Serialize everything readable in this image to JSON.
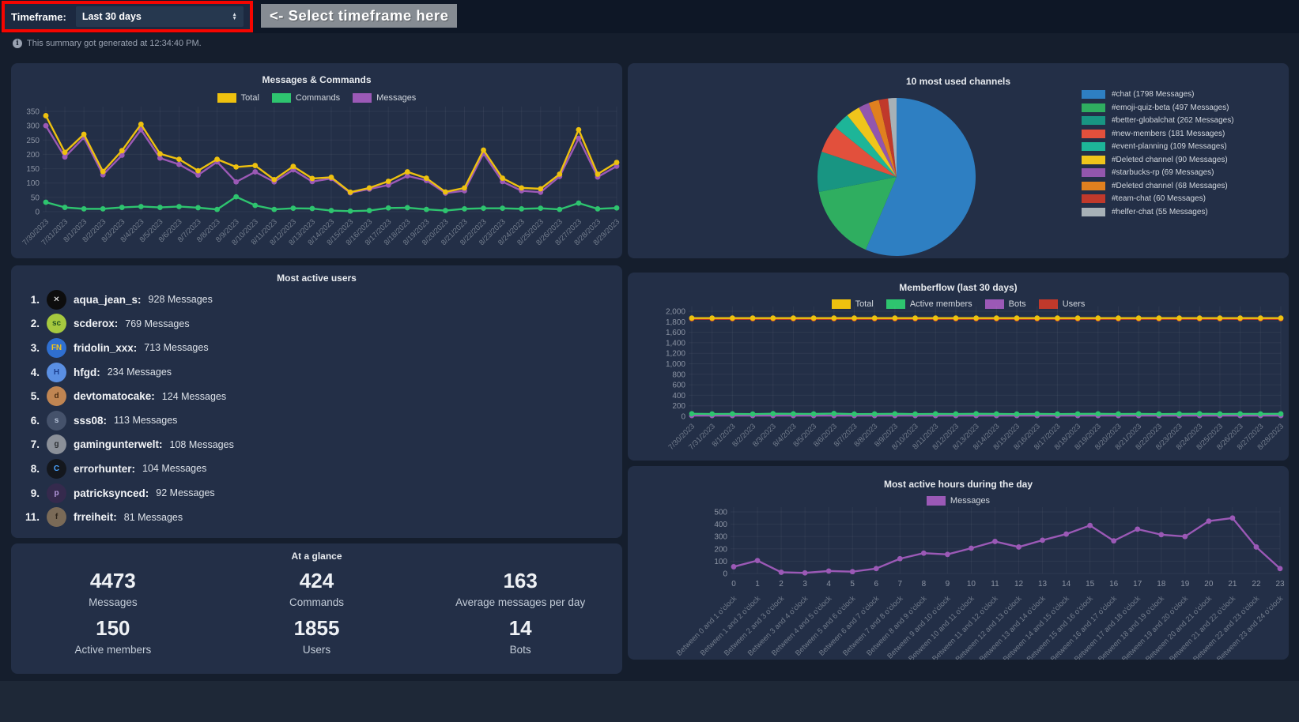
{
  "topbar": {
    "timeframe_label": "Timeframe:",
    "timeframe_value": "Last 30 days",
    "hint": "<- Select timeframe here",
    "highlight_color": "#f50500"
  },
  "info_banner": {
    "icon": "info-icon",
    "text": "This summary got generated at 12:34:40 PM."
  },
  "chart_data": [
    {
      "type": "line",
      "title": "Messages & Commands",
      "legend_position": "top",
      "grid": true,
      "xlabel": "",
      "ylabel": "",
      "ylim": [
        0,
        350
      ],
      "ytick_step": 50,
      "x": [
        "7/30/2023",
        "7/31/2023",
        "8/1/2023",
        "8/2/2023",
        "8/3/2023",
        "8/4/2023",
        "8/5/2023",
        "8/6/2023",
        "8/7/2023",
        "8/8/2023",
        "8/9/2023",
        "8/10/2023",
        "8/11/2023",
        "8/12/2023",
        "8/13/2023",
        "8/14/2023",
        "8/15/2023",
        "8/16/2023",
        "8/17/2023",
        "8/18/2023",
        "8/19/2023",
        "8/20/2023",
        "8/21/2023",
        "8/22/2023",
        "8/23/2023",
        "8/24/2023",
        "8/25/2023",
        "8/26/2023",
        "8/27/2023",
        "8/28/2023",
        "8/29/2023"
      ],
      "series": [
        {
          "name": "Total",
          "color": "#eec10f",
          "values": [
            335,
            207,
            270,
            140,
            213,
            305,
            202,
            183,
            143,
            183,
            156,
            161,
            112,
            158,
            116,
            120,
            68,
            83,
            106,
            139,
            117,
            69,
            83,
            215,
            117,
            83,
            80,
            131,
            286,
            131,
            172
          ]
        },
        {
          "name": "Commands",
          "color": "#2ec46f",
          "values": [
            33,
            15,
            10,
            10,
            15,
            18,
            15,
            18,
            14,
            8,
            52,
            22,
            8,
            12,
            11,
            4,
            2,
            4,
            13,
            14,
            8,
            4,
            10,
            12,
            12,
            10,
            12,
            8,
            30,
            10,
            13
          ]
        },
        {
          "name": "Messages",
          "color": "#9b59b6",
          "values": [
            300,
            191,
            259,
            129,
            197,
            286,
            187,
            165,
            128,
            174,
            104,
            139,
            104,
            146,
            105,
            116,
            66,
            79,
            93,
            125,
            109,
            65,
            73,
            203,
            105,
            73,
            68,
            123,
            256,
            121,
            159
          ]
        }
      ]
    },
    {
      "type": "pie",
      "title": "10 most used channels",
      "legend_position": "right",
      "slices": [
        {
          "label": "#chat (1798 Messages)",
          "value": 1798,
          "color": "#2e7fc2"
        },
        {
          "label": "#emoji-quiz-beta (497 Messages)",
          "value": 497,
          "color": "#2fae60"
        },
        {
          "label": "#better-globalchat (262 Messages)",
          "value": 262,
          "color": "#189582"
        },
        {
          "label": "#new-members (181 Messages)",
          "value": 181,
          "color": "#e2503c"
        },
        {
          "label": "#event-planning (109 Messages)",
          "value": 109,
          "color": "#1db598"
        },
        {
          "label": "#Deleted channel (90 Messages)",
          "value": 90,
          "color": "#efc51b"
        },
        {
          "label": "#starbucks-rp (69 Messages)",
          "value": 69,
          "color": "#9256ad"
        },
        {
          "label": "#Deleted channel (68 Messages)",
          "value": 68,
          "color": "#e0801f"
        },
        {
          "label": "#team-chat (60 Messages)",
          "value": 60,
          "color": "#c0392b"
        },
        {
          "label": "#helfer-chat (55 Messages)",
          "value": 55,
          "color": "#a7b1b7"
        }
      ]
    },
    {
      "type": "line",
      "title": "Memberflow (last 30 days)",
      "legend_position": "top",
      "grid": true,
      "xlabel": "",
      "ylabel": "",
      "ylim": [
        0,
        2000
      ],
      "ytick_step": 200,
      "x": [
        "7/30/2023",
        "7/31/2023",
        "8/1/2023",
        "8/2/2023",
        "8/3/2023",
        "8/4/2023",
        "8/5/2023",
        "8/6/2023",
        "8/7/2023",
        "8/8/2023",
        "8/9/2023",
        "8/10/2023",
        "8/11/2023",
        "8/12/2023",
        "8/13/2023",
        "8/14/2023",
        "8/15/2023",
        "8/16/2023",
        "8/17/2023",
        "8/18/2023",
        "8/19/2023",
        "8/20/2023",
        "8/21/2023",
        "8/22/2023",
        "8/23/2023",
        "8/24/2023",
        "8/25/2023",
        "8/26/2023",
        "8/27/2023",
        "8/28/2023"
      ],
      "series": [
        {
          "name": "Total",
          "color": "#eec10f",
          "values": [
            1869,
            1869,
            1869,
            1869,
            1869,
            1869,
            1869,
            1869,
            1869,
            1869,
            1869,
            1869,
            1869,
            1869,
            1869,
            1869,
            1869,
            1869,
            1869,
            1869,
            1869,
            1869,
            1869,
            1869,
            1869,
            1869,
            1869,
            1869,
            1869,
            1869
          ]
        },
        {
          "name": "Active members",
          "color": "#2ec46f",
          "values": [
            48,
            44,
            46,
            43,
            50,
            47,
            45,
            52,
            42,
            44,
            47,
            43,
            46,
            44,
            48,
            45,
            42,
            46,
            43,
            45,
            47,
            44,
            46,
            43,
            45,
            48,
            44,
            46,
            45,
            47
          ]
        },
        {
          "name": "Bots",
          "color": "#9b59b6",
          "values": [
            14,
            14,
            14,
            14,
            14,
            14,
            14,
            14,
            14,
            14,
            14,
            14,
            14,
            14,
            14,
            14,
            14,
            14,
            14,
            14,
            14,
            14,
            14,
            14,
            14,
            14,
            14,
            14,
            14,
            14
          ]
        },
        {
          "name": "Users",
          "color": "#c0392b",
          "values": [
            1855,
            1855,
            1855,
            1855,
            1855,
            1855,
            1855,
            1855,
            1855,
            1855,
            1855,
            1855,
            1855,
            1855,
            1855,
            1855,
            1855,
            1855,
            1855,
            1855,
            1855,
            1855,
            1855,
            1855,
            1855,
            1855,
            1855,
            1855,
            1855,
            1855
          ]
        }
      ]
    },
    {
      "type": "line",
      "title": "Most active hours during the day",
      "legend_position": "top",
      "grid": true,
      "xlabel": "",
      "ylabel": "",
      "ylim": [
        0,
        500
      ],
      "ytick_step": 100,
      "x": [
        "0",
        "1",
        "2",
        "3",
        "4",
        "5",
        "6",
        "7",
        "8",
        "9",
        "10",
        "11",
        "12",
        "13",
        "14",
        "15",
        "16",
        "17",
        "18",
        "19",
        "20",
        "21",
        "22",
        "23"
      ],
      "x_sub": [
        "Between 0 and 1 o'clock",
        "Between 1 and 2 o'clock",
        "Between 2 and 3 o'clock",
        "Between 3 and 4 o'clock",
        "Between 4 and 5 o'clock",
        "Between 5 and 6 o'clock",
        "Between 6 and 7 o'clock",
        "Between 7 and 8 o'clock",
        "Between 8 and 9 o'clock",
        "Between 9 and 10 o'clock",
        "Between 10 and 11 o'clock",
        "Between 11 and 12 o'clock",
        "Between 12 and 13 o'clock",
        "Between 13 and 14 o'clock",
        "Between 14 and 15 o'clock",
        "Between 15 and 16 o'clock",
        "Between 16 and 17 o'clock",
        "Between 17 and 18 o'clock",
        "Between 18 and 19 o'clock",
        "Between 19 and 20 o'clock",
        "Between 20 and 21 o'clock",
        "Between 21 and 22 o'clock",
        "Between 22 and 23 o'clock",
        "Between 23 and 24 o'clock"
      ],
      "series": [
        {
          "name": "Messages",
          "color": "#9b59b6",
          "values": [
            55,
            105,
            10,
            5,
            20,
            15,
            40,
            120,
            165,
            155,
            205,
            260,
            215,
            270,
            320,
            390,
            265,
            360,
            315,
            300,
            425,
            450,
            215,
            40
          ]
        }
      ]
    }
  ],
  "most_active_users": {
    "title": "Most active users",
    "list": [
      {
        "rank": "1.",
        "name": "aqua_jean_s:",
        "messages": "928 Messages",
        "avatar_bg": "#0d0d0d",
        "avatar_fg": "#ffffff",
        "avatar_glyph": "✕"
      },
      {
        "rank": "2.",
        "name": "scderox:",
        "messages": "769 Messages",
        "avatar_bg": "#a6c93f",
        "avatar_fg": "#235420",
        "avatar_glyph": "sc"
      },
      {
        "rank": "3.",
        "name": "fridolin_xxx:",
        "messages": "713 Messages",
        "avatar_bg": "#2f6fd0",
        "avatar_fg": "#f5c518",
        "avatar_glyph": "FN"
      },
      {
        "rank": "4.",
        "name": "hfgd:",
        "messages": "234 Messages",
        "avatar_bg": "#5a8fe3",
        "avatar_fg": "#1c3f8f",
        "avatar_glyph": "H"
      },
      {
        "rank": "5.",
        "name": "devtomatocake:",
        "messages": "124 Messages",
        "avatar_bg": "#c08552",
        "avatar_fg": "#4a2c12",
        "avatar_glyph": "d"
      },
      {
        "rank": "6.",
        "name": "sss08:",
        "messages": "113 Messages",
        "avatar_bg": "#45526b",
        "avatar_fg": "#b8c4d9",
        "avatar_glyph": "s"
      },
      {
        "rank": "7.",
        "name": "gamingunterwelt:",
        "messages": "108 Messages",
        "avatar_bg": "#8b9099",
        "avatar_fg": "#2c2f33",
        "avatar_glyph": "g"
      },
      {
        "rank": "8.",
        "name": "errorhunter:",
        "messages": "104 Messages",
        "avatar_bg": "#14171d",
        "avatar_fg": "#4aa3ff",
        "avatar_glyph": "C"
      },
      {
        "rank": "9.",
        "name": "patricksynced:",
        "messages": "92 Messages",
        "avatar_bg": "#352a4d",
        "avatar_fg": "#b79ae0",
        "avatar_glyph": "p"
      },
      {
        "rank": "11.",
        "name": "frreiheit:",
        "messages": "81 Messages",
        "avatar_bg": "#7a6a57",
        "avatar_fg": "#2d241a",
        "avatar_glyph": "f"
      }
    ]
  },
  "at_a_glance": {
    "title": "At a glance",
    "stats": [
      {
        "value": "4473",
        "label": "Messages"
      },
      {
        "value": "424",
        "label": "Commands"
      },
      {
        "value": "163",
        "label": "Average messages per day"
      },
      {
        "value": "150",
        "label": "Active members"
      },
      {
        "value": "1855",
        "label": "Users"
      },
      {
        "value": "14",
        "label": "Bots"
      }
    ]
  }
}
